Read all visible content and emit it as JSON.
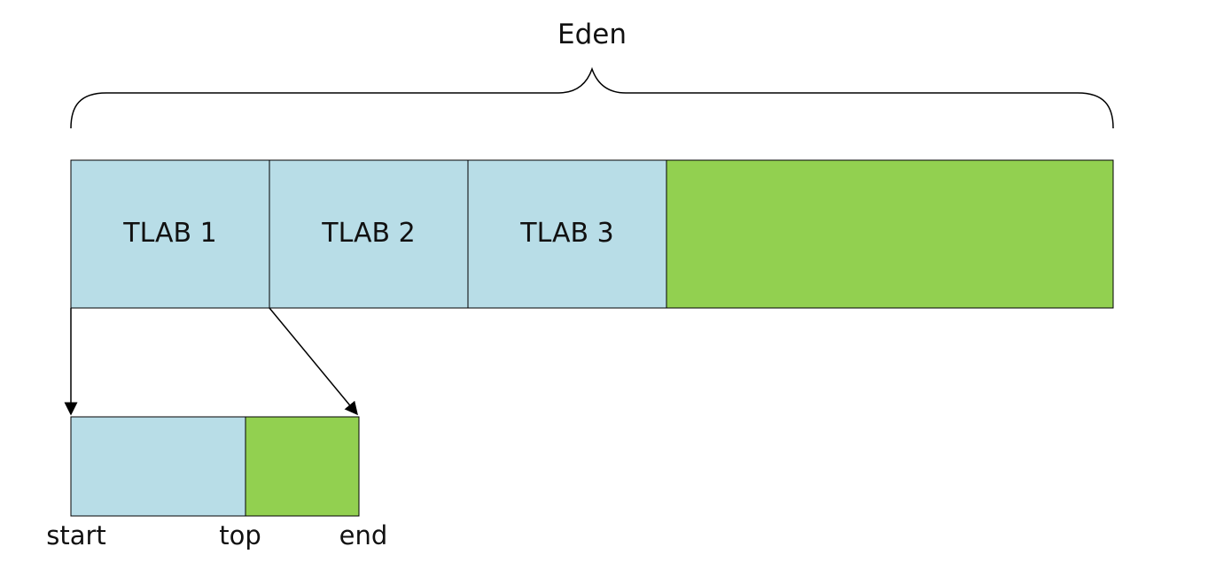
{
  "diagram": {
    "eden_label": "Eden",
    "tlabs": [
      {
        "label": "TLAB 1"
      },
      {
        "label": "TLAB 2"
      },
      {
        "label": "TLAB 3"
      }
    ],
    "detail": {
      "start_label": "start",
      "top_label": "top",
      "end_label": "end"
    }
  },
  "colors": {
    "tlab_fill": "#b8dde7",
    "free_fill": "#92d050",
    "outline": "#000000"
  }
}
